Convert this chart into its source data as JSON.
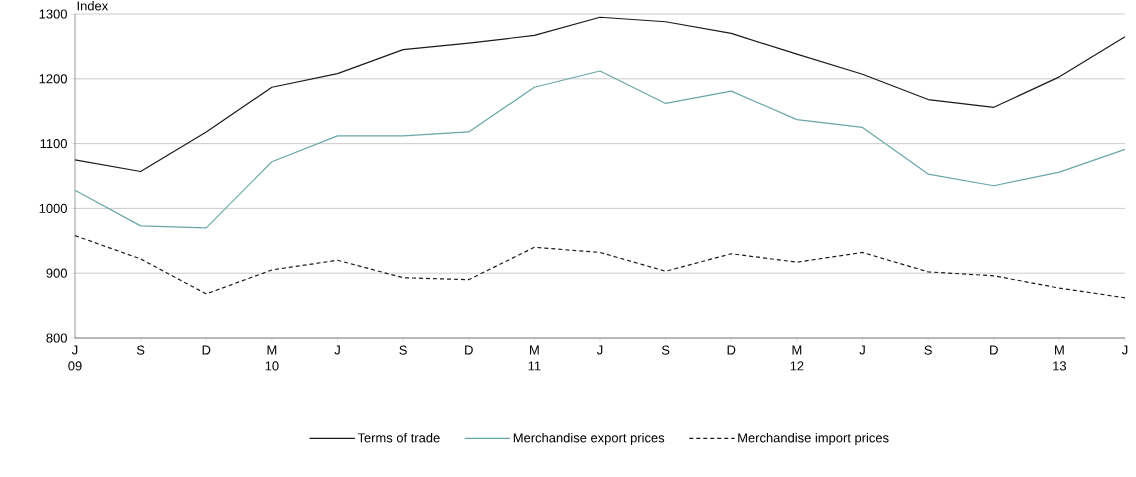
{
  "chart_data": {
    "type": "line",
    "ylabel": "Index",
    "categories": [
      "J 09",
      "S",
      "D",
      "M 10",
      "J",
      "S",
      "D",
      "M 11",
      "J",
      "S",
      "D",
      "M 12",
      "J",
      "S",
      "D",
      "M 13",
      "J"
    ],
    "series": [
      {
        "name": "Terms of trade",
        "color": "#1a1a1a",
        "line_style": "solid",
        "values": [
          1075,
          1057,
          1118,
          1187,
          1208,
          1245,
          1255,
          1267,
          1295,
          1288,
          1270,
          1238,
          1207,
          1168,
          1156,
          1203,
          1265
        ]
      },
      {
        "name": "Merchandise export prices",
        "color": "#6aa6a8",
        "line_style": "solid",
        "values": [
          1028,
          973,
          970,
          1072,
          1112,
          1112,
          1118,
          1187,
          1212,
          1162,
          1181,
          1137,
          1125,
          1053,
          1035,
          1056,
          1091
        ]
      },
      {
        "name": "Merchandise import prices",
        "color": "#1a1a1a",
        "line_style": "dashed",
        "values": [
          958,
          922,
          868,
          905,
          920,
          893,
          890,
          940,
          932,
          903,
          930,
          917,
          932,
          902,
          896,
          877,
          862
        ]
      }
    ],
    "ylim": [
      800,
      1300
    ],
    "yticks": [
      800,
      900,
      1000,
      1100,
      1200,
      1300
    ],
    "grid": "y",
    "legend": "bottom",
    "marker": "none"
  }
}
